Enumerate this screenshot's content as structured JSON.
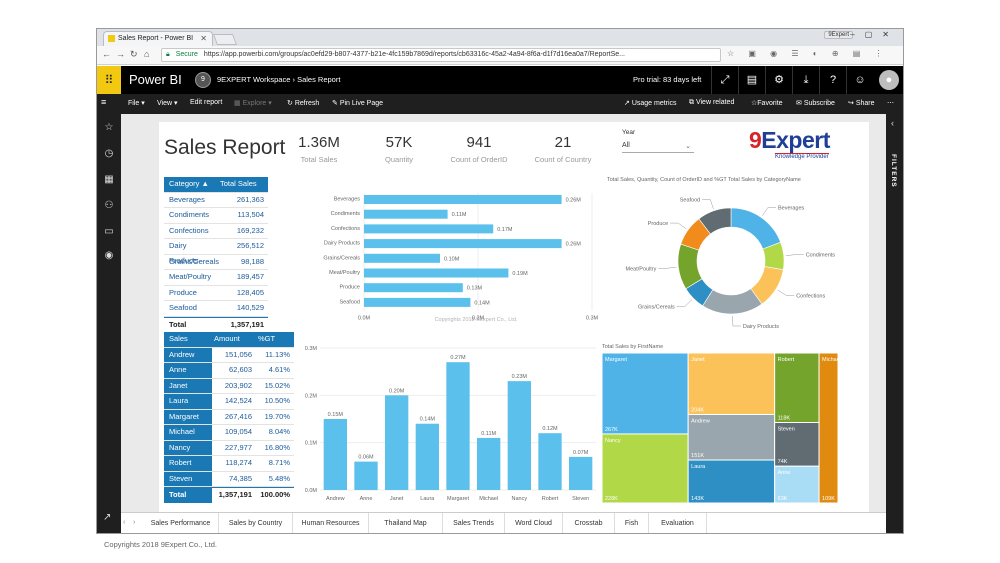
{
  "browser": {
    "tab_title": "Sales Report - Power BI",
    "user_chip": "9Expert",
    "secure_label": "Secure",
    "url": "https://app.powerbi.com/groups/ac0efd29-b807-4377-b21e-4fc159b7869d/reports/cb63316c-45a2-4a94-8f6a-d1f7d16ea0a7/ReportSe..."
  },
  "app": {
    "name": "Power BI",
    "workspace": "9EXPERT Workspace",
    "report_crumb": "Sales Report",
    "trial": "Pro trial: 83 days left",
    "filters_label": "FILTERS"
  },
  "commands": {
    "file": "File",
    "view": "View",
    "edit": "Edit report",
    "explore": "Explore",
    "refresh": "Refresh",
    "pin": "Pin Live Page",
    "usage": "Usage metrics",
    "related": "View related",
    "favorite": "Favorite",
    "subscribe": "Subscribe",
    "share": "Share"
  },
  "report": {
    "title": "Sales Report",
    "kpis": [
      {
        "value": "1.36M",
        "label": "Total Sales"
      },
      {
        "value": "57K",
        "label": "Quantity"
      },
      {
        "value": "941",
        "label": "Count of OrderID"
      },
      {
        "value": "21",
        "label": "Count of Country"
      }
    ],
    "year_slicer": {
      "label": "Year",
      "value": "All"
    },
    "logo_main": "Expert",
    "logo_nine": "9",
    "logo_sub": "Knowledge Provider",
    "watermark": "Copyrights 2018 9Expert Co., Ltd.",
    "category_table": {
      "headers": [
        "Category",
        "Total Sales"
      ],
      "rows": [
        [
          "Beverages",
          "261,363"
        ],
        [
          "Condiments",
          "113,504"
        ],
        [
          "Confections",
          "169,232"
        ],
        [
          "Dairy Products",
          "256,512"
        ],
        [
          "Grains/Cereals",
          "98,188"
        ],
        [
          "Meat/Poultry",
          "189,457"
        ],
        [
          "Produce",
          "128,405"
        ],
        [
          "Seafood",
          "140,529"
        ]
      ],
      "total": [
        "Total",
        "1,357,191"
      ]
    },
    "person_table": {
      "headers": [
        "Sales Person",
        "Amount",
        "%GT"
      ],
      "rows": [
        [
          "Andrew",
          "151,056",
          "11.13%"
        ],
        [
          "Anne",
          "62,603",
          "4.61%"
        ],
        [
          "Janet",
          "203,902",
          "15.02%"
        ],
        [
          "Laura",
          "142,524",
          "10.50%"
        ],
        [
          "Margaret",
          "267,416",
          "19.70%"
        ],
        [
          "Michael",
          "109,054",
          "8.04%"
        ],
        [
          "Nancy",
          "227,977",
          "16.80%"
        ],
        [
          "Robert",
          "118,274",
          "8.71%"
        ],
        [
          "Steven",
          "74,385",
          "5.48%"
        ]
      ],
      "total": [
        "Total",
        "1,357,191",
        "100.00%"
      ]
    },
    "donut_title": "Total Sales, Quantity, Count of OrderID and %GT Total Sales by CategoryName",
    "treemap_title": "Total Sales by FirstName"
  },
  "chart_data": [
    {
      "type": "bar",
      "orientation": "horizontal",
      "categories": [
        "Beverages",
        "Condiments",
        "Confections",
        "Dairy Products",
        "Grains/Cereals",
        "Meat/Poultry",
        "Produce",
        "Seafood"
      ],
      "values": [
        0.26,
        0.11,
        0.17,
        0.26,
        0.1,
        0.19,
        0.13,
        0.14
      ],
      "data_labels": [
        "0.26M",
        "0.11M",
        "0.17M",
        "0.26M",
        "0.10M",
        "0.19M",
        "0.13M",
        "0.14M"
      ],
      "xticks": [
        "0.0M",
        "0.2M",
        "0.3M"
      ],
      "xlim": [
        0,
        0.3
      ],
      "color": "#5bc0eb"
    },
    {
      "type": "bar",
      "categories": [
        "Andrew",
        "Anne",
        "Janet",
        "Laura",
        "Margaret",
        "Michael",
        "Nancy",
        "Robert",
        "Steven"
      ],
      "values": [
        0.15,
        0.06,
        0.2,
        0.14,
        0.27,
        0.11,
        0.23,
        0.12,
        0.07
      ],
      "data_labels": [
        "0.15M",
        "0.06M",
        "0.20M",
        "0.14M",
        "0.27M",
        "0.11M",
        "0.23M",
        "0.12M",
        "0.07M"
      ],
      "yticks": [
        "0.0M",
        "0.1M",
        "0.2M",
        "0.3M"
      ],
      "ylim": [
        0,
        0.3
      ],
      "color": "#5bc0eb"
    },
    {
      "type": "pie",
      "donut": true,
      "categories": [
        "Beverages",
        "Condiments",
        "Confections",
        "Dairy Products",
        "Grains/Cereals",
        "Meat/Poultry",
        "Produce",
        "Seafood"
      ],
      "values": [
        261363,
        113504,
        169232,
        256512,
        98188,
        189457,
        128405,
        140529
      ],
      "colors": [
        "#4fb3e8",
        "#b1d847",
        "#fcc25a",
        "#9aa6ad",
        "#2d8fc4",
        "#74a42c",
        "#f08b1c",
        "#606b72"
      ]
    },
    {
      "type": "treemap",
      "categories": [
        "Margaret",
        "Janet",
        "Nancy",
        "Andrew",
        "Laura",
        "Robert",
        "Michael",
        "Steven",
        "Anne"
      ],
      "values": [
        267416,
        203902,
        227977,
        151056,
        142524,
        118274,
        109054,
        74385,
        62603
      ],
      "data_labels": [
        "267K",
        "204K",
        "228K",
        "151K",
        "143K",
        "118K",
        "109K",
        "74K",
        "63K"
      ],
      "colors": [
        "#4fb3e8",
        "#fcc25a",
        "#b1d847",
        "#9aa6ad",
        "#2d8fc4",
        "#74a42c",
        "#e08a10",
        "#606b72",
        "#a9dcf5"
      ]
    }
  ],
  "page_tabs": [
    "Sales Performance",
    "Sales by Country",
    "Human Resources",
    "Thailand Map",
    "Sales Trends",
    "Word Cloud",
    "Crosstab",
    "Fish",
    "Evaluation"
  ],
  "footer": "Copyrights 2018 9Expert Co., Ltd."
}
